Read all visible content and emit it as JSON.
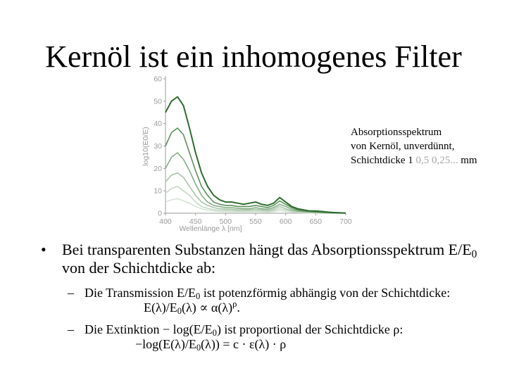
{
  "slide": {
    "title": "Kernöl ist ein inhomogenes Filter"
  },
  "caption": {
    "line1": "Absorptionsspektrum",
    "line2": "von Kernöl, unverdünnt,",
    "line3_prefix": "Schichtdicke 1 ",
    "line3_muted": "0,5 0,25...",
    "line3_suffix": " mm"
  },
  "bullet": {
    "marker": "•",
    "text_1": "Bei transparenten Substanzen hängt das Absorptionsspektrum E/E",
    "text_sub": "0",
    "text_2": " von der Schichtdicke ab:"
  },
  "sub1": {
    "marker": "–",
    "t1": "Die Transmission E/E",
    "t1_sub": "0",
    "t2": " ist potenzförmig abhängig von der Schichtdicke:",
    "f1": "E(λ)/E",
    "f1_sub": "0",
    "f2": "(λ) ∝ α(λ)",
    "f2_sup": "ρ",
    "f3": "."
  },
  "sub2": {
    "marker": "–",
    "t1": "Die Extinktion − log(E/E",
    "t1_sub": "0",
    "t2": ") ist proportional der Schichtdicke ρ:",
    "f1": "−log(E(λ)/E",
    "f1_sub": "0",
    "f2": "(λ)) = c · ε(λ) · ρ"
  },
  "chart_data": {
    "type": "line",
    "xlabel": "Wellenlänge λ [nm]",
    "ylabel": "log10(E0/E)",
    "x_ticks": [
      400,
      450,
      500,
      550,
      600,
      650,
      700
    ],
    "y_ticks": [
      0,
      10,
      20,
      30,
      40,
      50,
      60
    ],
    "y_tick_labels": [
      "0",
      "10",
      "20",
      "30",
      "40",
      "50",
      "60"
    ],
    "xlim": [
      400,
      700
    ],
    "ylim": [
      0,
      60
    ],
    "grid": false,
    "colors": [
      "#2e6b2e",
      "#5c8f5c",
      "#86ad86",
      "#a9c5a9",
      "#c4d8c4",
      "#d6e4d6"
    ],
    "x": [
      400,
      410,
      420,
      430,
      440,
      450,
      460,
      470,
      480,
      490,
      500,
      510,
      520,
      530,
      540,
      550,
      560,
      570,
      580,
      590,
      600,
      610,
      620,
      630,
      640,
      650,
      660,
      670,
      680,
      690,
      700
    ],
    "series": [
      {
        "values": [
          45,
          50,
          52,
          48,
          38,
          27,
          18,
          12,
          8,
          6,
          5,
          5,
          4.5,
          4,
          4.5,
          5,
          4,
          3.5,
          4.5,
          7,
          5,
          3,
          2,
          1.5,
          1,
          1,
          0.8,
          0.5,
          0.3,
          0.2,
          0.1
        ]
      },
      {
        "values": [
          30,
          36,
          38,
          35,
          27,
          19,
          12,
          8,
          5,
          4,
          3.5,
          3.5,
          3,
          3,
          3,
          3.5,
          3,
          2.5,
          3.5,
          5.5,
          4,
          2.5,
          1.5,
          1,
          0.8,
          0.6,
          0.5,
          0.3,
          0.2,
          0.1,
          0.1
        ]
      },
      {
        "values": [
          20,
          25,
          27,
          24,
          19,
          13,
          8,
          5,
          3.5,
          3,
          2.5,
          2.5,
          2.2,
          2,
          2,
          2.5,
          2,
          1.8,
          2.5,
          4,
          3,
          1.8,
          1,
          0.8,
          0.6,
          0.4,
          0.3,
          0.2,
          0.1,
          0.1,
          0
        ]
      },
      {
        "values": [
          14,
          17,
          18,
          16,
          12,
          8,
          5,
          3.5,
          2.5,
          2,
          1.8,
          1.8,
          1.5,
          1.5,
          1.5,
          1.8,
          1.5,
          1.2,
          1.8,
          3,
          2,
          1.2,
          0.8,
          0.5,
          0.4,
          0.3,
          0.2,
          0.1,
          0.1,
          0,
          0
        ]
      },
      {
        "values": [
          9,
          11,
          12,
          10,
          8,
          5,
          3,
          2.2,
          1.6,
          1.3,
          1.2,
          1.2,
          1,
          1,
          1,
          1.2,
          1,
          0.8,
          1.2,
          2,
          1.4,
          0.8,
          0.5,
          0.3,
          0.2,
          0.2,
          0.1,
          0.1,
          0,
          0,
          0
        ]
      },
      {
        "values": [
          5,
          6,
          6.5,
          5.5,
          4.5,
          3,
          2,
          1.4,
          1,
          0.8,
          0.7,
          0.7,
          0.6,
          0.6,
          0.6,
          0.7,
          0.6,
          0.5,
          0.7,
          1.2,
          0.8,
          0.5,
          0.3,
          0.2,
          0.1,
          0.1,
          0,
          0,
          0,
          0,
          0
        ]
      }
    ]
  }
}
